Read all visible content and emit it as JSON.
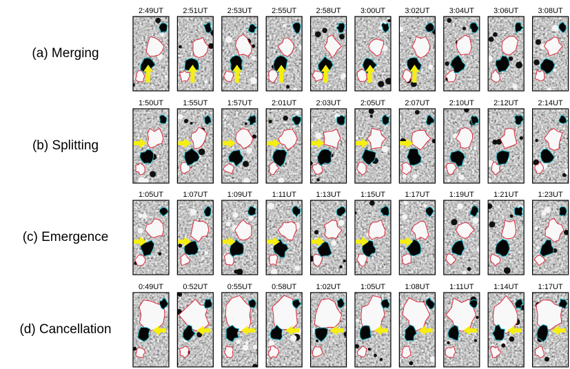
{
  "rows": [
    {
      "label": "(a) Merging",
      "times": [
        "2:49UT",
        "2:51UT",
        "2:53UT",
        "2:55UT",
        "2:58UT",
        "3:00UT",
        "3:02UT",
        "3:04UT",
        "3:06UT",
        "3:08UT"
      ]
    },
    {
      "label": "(b) Splitting",
      "times": [
        "1:50UT",
        "1:55UT",
        "1:57UT",
        "2:01UT",
        "2:03UT",
        "2:05UT",
        "2:07UT",
        "2:10UT",
        "2:12UT",
        "2:14UT"
      ]
    },
    {
      "label": "(c) Emergence",
      "times": [
        "1:05UT",
        "1:07UT",
        "1:09UT",
        "1:11UT",
        "1:13UT",
        "1:15UT",
        "1:17UT",
        "1:19UT",
        "1:21UT",
        "1:23UT"
      ]
    },
    {
      "label": "(d) Cancellation",
      "times": [
        "0:49UT",
        "0:52UT",
        "0:55UT",
        "0:58UT",
        "1:02UT",
        "1:05UT",
        "1:08UT",
        "1:11UT",
        "1:14UT",
        "1:17UT"
      ]
    }
  ]
}
